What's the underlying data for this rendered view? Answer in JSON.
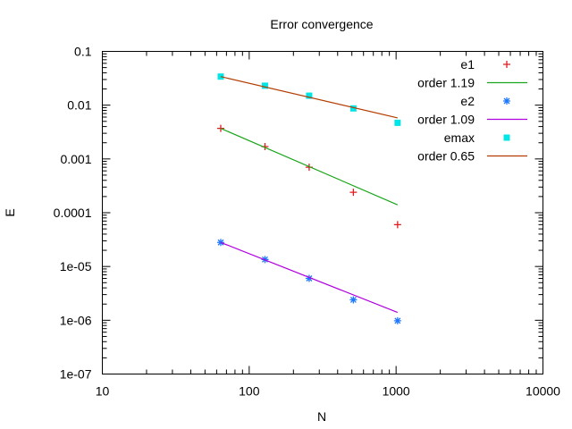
{
  "chart_data": {
    "type": "scatter",
    "title": "Error convergence",
    "xlabel": "N",
    "ylabel": "E",
    "xscale": "log",
    "yscale": "log",
    "xlim": [
      10,
      10000
    ],
    "ylim": [
      1e-07,
      0.1
    ],
    "x_ticks": [
      "10",
      "100",
      "1000",
      "10000"
    ],
    "y_ticks": [
      "0.1",
      "0.01",
      "0.001",
      "0.0001",
      "1e-05",
      "1e-06",
      "1e-07"
    ],
    "grid": false,
    "legend_position": "top-right",
    "x": [
      64,
      128,
      256,
      512,
      1024
    ],
    "series": [
      {
        "name": "e1",
        "kind": "points",
        "marker": "plus",
        "color": "#e41a1c",
        "values": [
          0.0037,
          0.0017,
          0.0007,
          0.00024,
          6e-05
        ]
      },
      {
        "name": "order 1.19",
        "kind": "line",
        "color": "#1aa51a",
        "x": [
          64,
          1024
        ],
        "values": [
          0.0037,
          0.00014
        ]
      },
      {
        "name": "e2",
        "kind": "points",
        "marker": "star",
        "color": "#1e78ff",
        "values": [
          2.8e-05,
          1.35e-05,
          6e-06,
          2.4e-06,
          9.8e-07
        ]
      },
      {
        "name": "order 1.09",
        "kind": "line",
        "color": "#b000e0",
        "x": [
          64,
          1024
        ],
        "values": [
          2.8e-05,
          1.4e-06
        ]
      },
      {
        "name": "emax",
        "kind": "points",
        "marker": "square",
        "color": "#00e5e5",
        "values": [
          0.034,
          0.023,
          0.015,
          0.0087,
          0.0047
        ]
      },
      {
        "name": "order 0.65",
        "kind": "line",
        "color": "#b33c00",
        "x": [
          64,
          1024
        ],
        "values": [
          0.034,
          0.0058
        ]
      }
    ]
  }
}
